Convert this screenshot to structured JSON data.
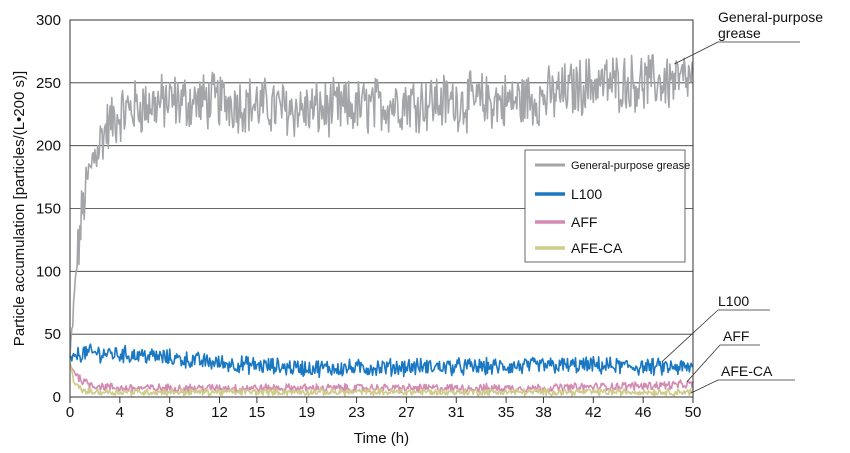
{
  "chart_data": {
    "type": "line",
    "title": "",
    "xlabel": "Time (h)",
    "ylabel": "Particle accumulation [particles/(L•200 s)]",
    "xlim": [
      0,
      50
    ],
    "ylim": [
      0,
      300
    ],
    "x_ticks": [
      "0",
      "4",
      "8",
      "12",
      "15",
      "19",
      "23",
      "27",
      "31",
      "35",
      "38",
      "42",
      "46",
      "50"
    ],
    "y_ticks": [
      "0",
      "50",
      "100",
      "150",
      "200",
      "250",
      "300"
    ],
    "grid": "horizontal",
    "legend_position": "center-right",
    "series": [
      {
        "name": "General-purpose grease",
        "color": "#a3a5a8",
        "x": [
          0,
          0.5,
          1,
          1.5,
          2,
          3,
          4,
          5,
          6,
          8,
          10,
          12,
          15,
          19,
          23,
          27,
          31,
          35,
          38,
          42,
          46,
          50
        ],
        "y": [
          30,
          100,
          150,
          175,
          195,
          215,
          225,
          230,
          232,
          235,
          235,
          236,
          232,
          228,
          230,
          235,
          235,
          235,
          238,
          250,
          250,
          252
        ],
        "noise": 20
      },
      {
        "name": "L100",
        "color": "#1a78c2",
        "x": [
          0,
          1,
          2,
          4,
          6,
          8,
          10,
          12,
          15,
          19,
          23,
          27,
          31,
          35,
          38,
          42,
          46,
          50
        ],
        "y": [
          30,
          35,
          35,
          34,
          33,
          31,
          29,
          27,
          25,
          23,
          23,
          24,
          24,
          24,
          25,
          25,
          24,
          23
        ],
        "noise": 6
      },
      {
        "name": "AFF",
        "color": "#d48bb3",
        "x": [
          0,
          0.5,
          1,
          2,
          4,
          8,
          12,
          15,
          19,
          23,
          27,
          31,
          35,
          38,
          42,
          46,
          50
        ],
        "y": [
          25,
          18,
          13,
          9,
          7,
          7,
          7,
          7,
          7,
          7,
          7,
          7,
          7,
          7,
          8,
          9,
          10
        ],
        "noise": 3
      },
      {
        "name": "AFE-CA",
        "color": "#cfcc8c",
        "x": [
          0,
          0.3,
          1,
          2,
          4,
          8,
          12,
          15,
          19,
          23,
          27,
          31,
          35,
          38,
          42,
          46,
          50
        ],
        "y": [
          28,
          12,
          5,
          4,
          4,
          4,
          4,
          4,
          4,
          4,
          4,
          4,
          4,
          4,
          4,
          4,
          4
        ],
        "noise": 2.5
      }
    ],
    "annotations": [
      {
        "text": [
          "General-purpose",
          "grease"
        ],
        "series": "General-purpose grease",
        "x": 48.5,
        "y": 265
      },
      {
        "text": [
          "L100"
        ],
        "series": "L100",
        "x": 47.5,
        "y": 28
      },
      {
        "text": [
          "AFF"
        ],
        "series": "AFF",
        "x": 49.5,
        "y": 12
      },
      {
        "text": [
          "AFE-CA"
        ],
        "series": "AFE-CA",
        "x": 49.8,
        "y": 3
      }
    ]
  }
}
